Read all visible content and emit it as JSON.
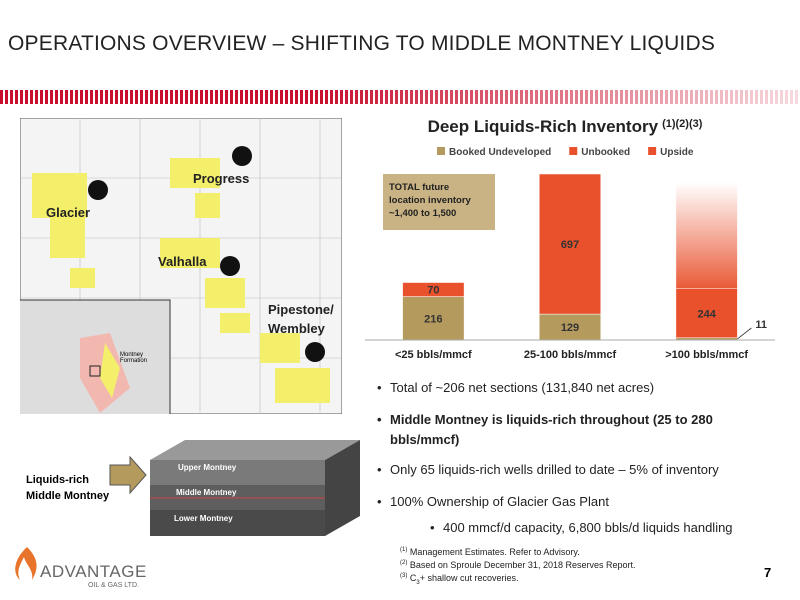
{
  "header": {
    "title": "OPERATIONS OVERVIEW – SHIFTING TO MIDDLE MONTNEY LIQUIDS"
  },
  "map": {
    "labels": [
      "Glacier",
      "Progress",
      "Valhalla",
      "Pipestone/ Wembley"
    ],
    "inset_label": "Montney Formation",
    "diagram_labels": [
      "Upper Montney",
      "Middle Montney",
      "Lower Montney"
    ],
    "callout": "Liquids-rich Middle Montney"
  },
  "chart_data": {
    "type": "stacked-bar",
    "title": "Deep Liquids-Rich Inventory",
    "title_superscript": "(1)(2)(3)",
    "categories": [
      "<25 bbls/mmcf",
      "25-100 bbls/mmcf",
      ">100 bbls/mmcf"
    ],
    "series": [
      {
        "name": "Booked Undeveloped",
        "color": "#b59a5e",
        "values": [
          216,
          129,
          11
        ]
      },
      {
        "name": "Unbooked",
        "color": "#e8512c",
        "values": [
          70,
          697,
          244
        ]
      },
      {
        "name": "Upside",
        "color": "#e8512c",
        "values": [
          null,
          null,
          530
        ],
        "fill_style": "gradient",
        "labels": false
      }
    ],
    "annotation": "TOTAL future location inventory ~1,400 to 1,500",
    "legend": "top"
  },
  "bullets": [
    {
      "text": "Total of ~206 net sections (131,840 net acres)",
      "bold": false,
      "level": 1
    },
    {
      "text": "Middle Montney is liquids-rich throughout (25 to 280 bbls/mmcf)",
      "bold": true,
      "level": 1
    },
    {
      "text": "Only 65 liquids-rich wells drilled to date – 5% of inventory",
      "bold": false,
      "level": 1
    },
    {
      "text": "100% Ownership of Glacier Gas Plant",
      "bold": false,
      "level": 1
    },
    {
      "text": "400 mmcf/d capacity, 6,800 bbls/d liquids handling",
      "bold": false,
      "level": 2
    }
  ],
  "footnotes": [
    {
      "mark": "(1)",
      "text": "Management Estimates. Refer to Advisory."
    },
    {
      "mark": "(2)",
      "text": "Based on Sproule December 31, 2018 Reserves Report."
    },
    {
      "mark": "(3)",
      "text": "C",
      "sub": "3",
      "rest": "+ shallow cut recoveries."
    }
  ],
  "logo": {
    "name": "ADVANTAGE",
    "tagline": "OIL & GAS LTD."
  },
  "page_number": "7"
}
